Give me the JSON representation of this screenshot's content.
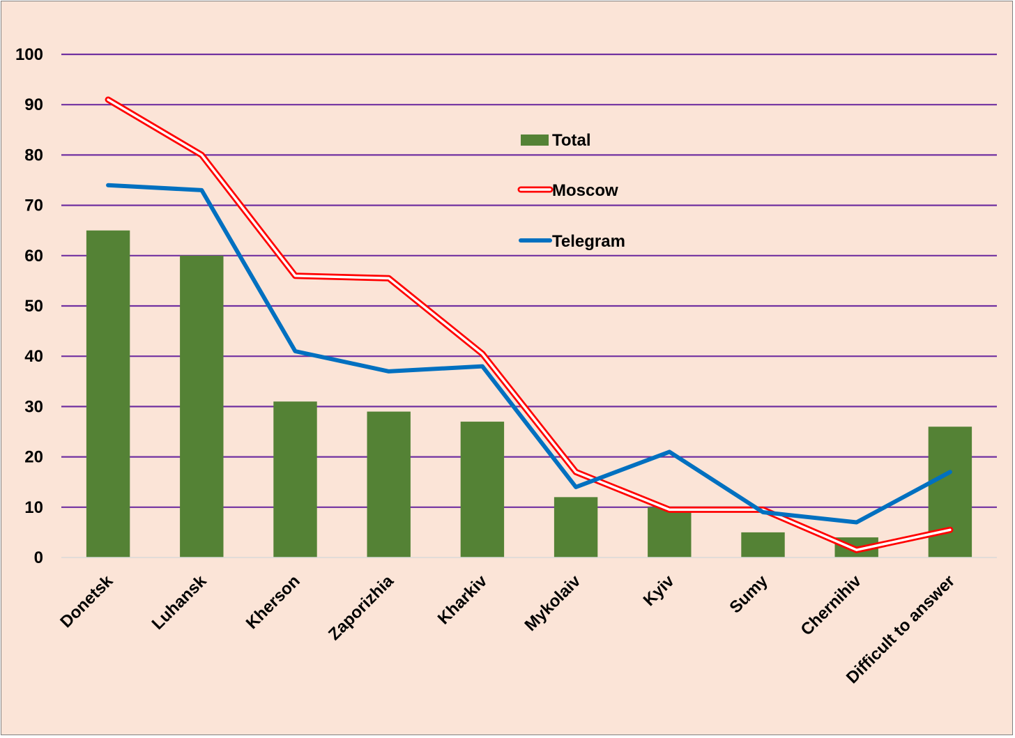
{
  "chart_data": {
    "type": "bar",
    "title": "",
    "xlabel": "",
    "ylabel": "",
    "ylim": [
      0,
      100
    ],
    "yticks": [
      0,
      10,
      20,
      30,
      40,
      50,
      60,
      70,
      80,
      90,
      100
    ],
    "grid": true,
    "legend_position": "upper-center",
    "categories": [
      "Donetsk",
      "Luhansk",
      "Kherson",
      "Zaporizhia",
      "Kharkiv",
      "Mykolaiv",
      "Kyiv",
      "Sumy",
      "Chernihiv",
      "Difficult to answer"
    ],
    "series": [
      {
        "name": "Total",
        "type": "bar",
        "color": "#548235",
        "values": [
          65,
          60,
          31,
          29,
          27,
          12,
          10,
          5,
          4,
          26
        ]
      },
      {
        "name": "Moscow",
        "type": "line",
        "style": "double-line",
        "color": "#ff0000",
        "values": [
          91,
          80,
          56,
          55.5,
          40.5,
          17,
          9.5,
          9.5,
          1.5,
          5.5
        ]
      },
      {
        "name": "Telegram",
        "type": "line",
        "color": "#0070c0",
        "values": [
          74,
          73,
          41,
          37,
          38,
          14,
          21,
          9,
          7,
          17
        ]
      }
    ],
    "colors": {
      "background": "#fbe4d7",
      "gridline": "#7030a0",
      "axis": "#d9d9d9"
    }
  }
}
